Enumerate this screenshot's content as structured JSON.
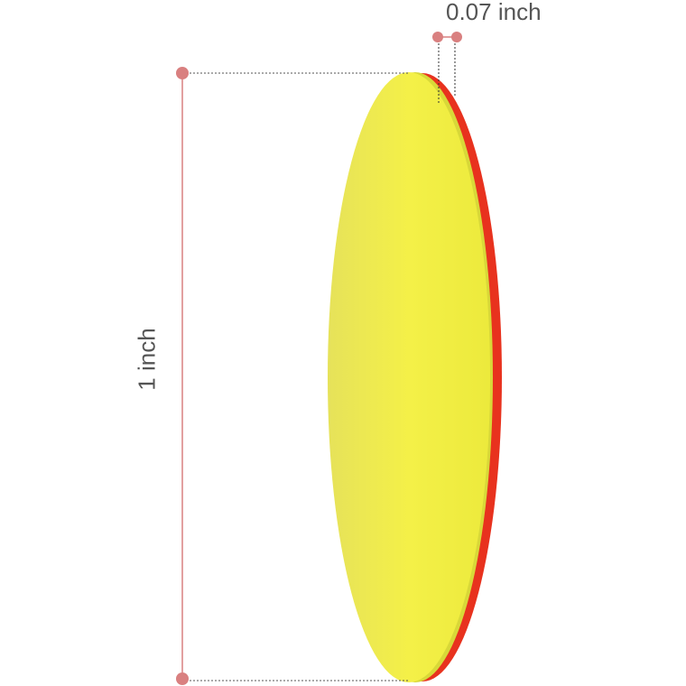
{
  "dimensions": {
    "height_label": "1 inch",
    "thickness_label": "0.07 inch"
  },
  "colors": {
    "face": "#f2ee45",
    "edge": "#e8321e",
    "marker": "#d98080"
  }
}
